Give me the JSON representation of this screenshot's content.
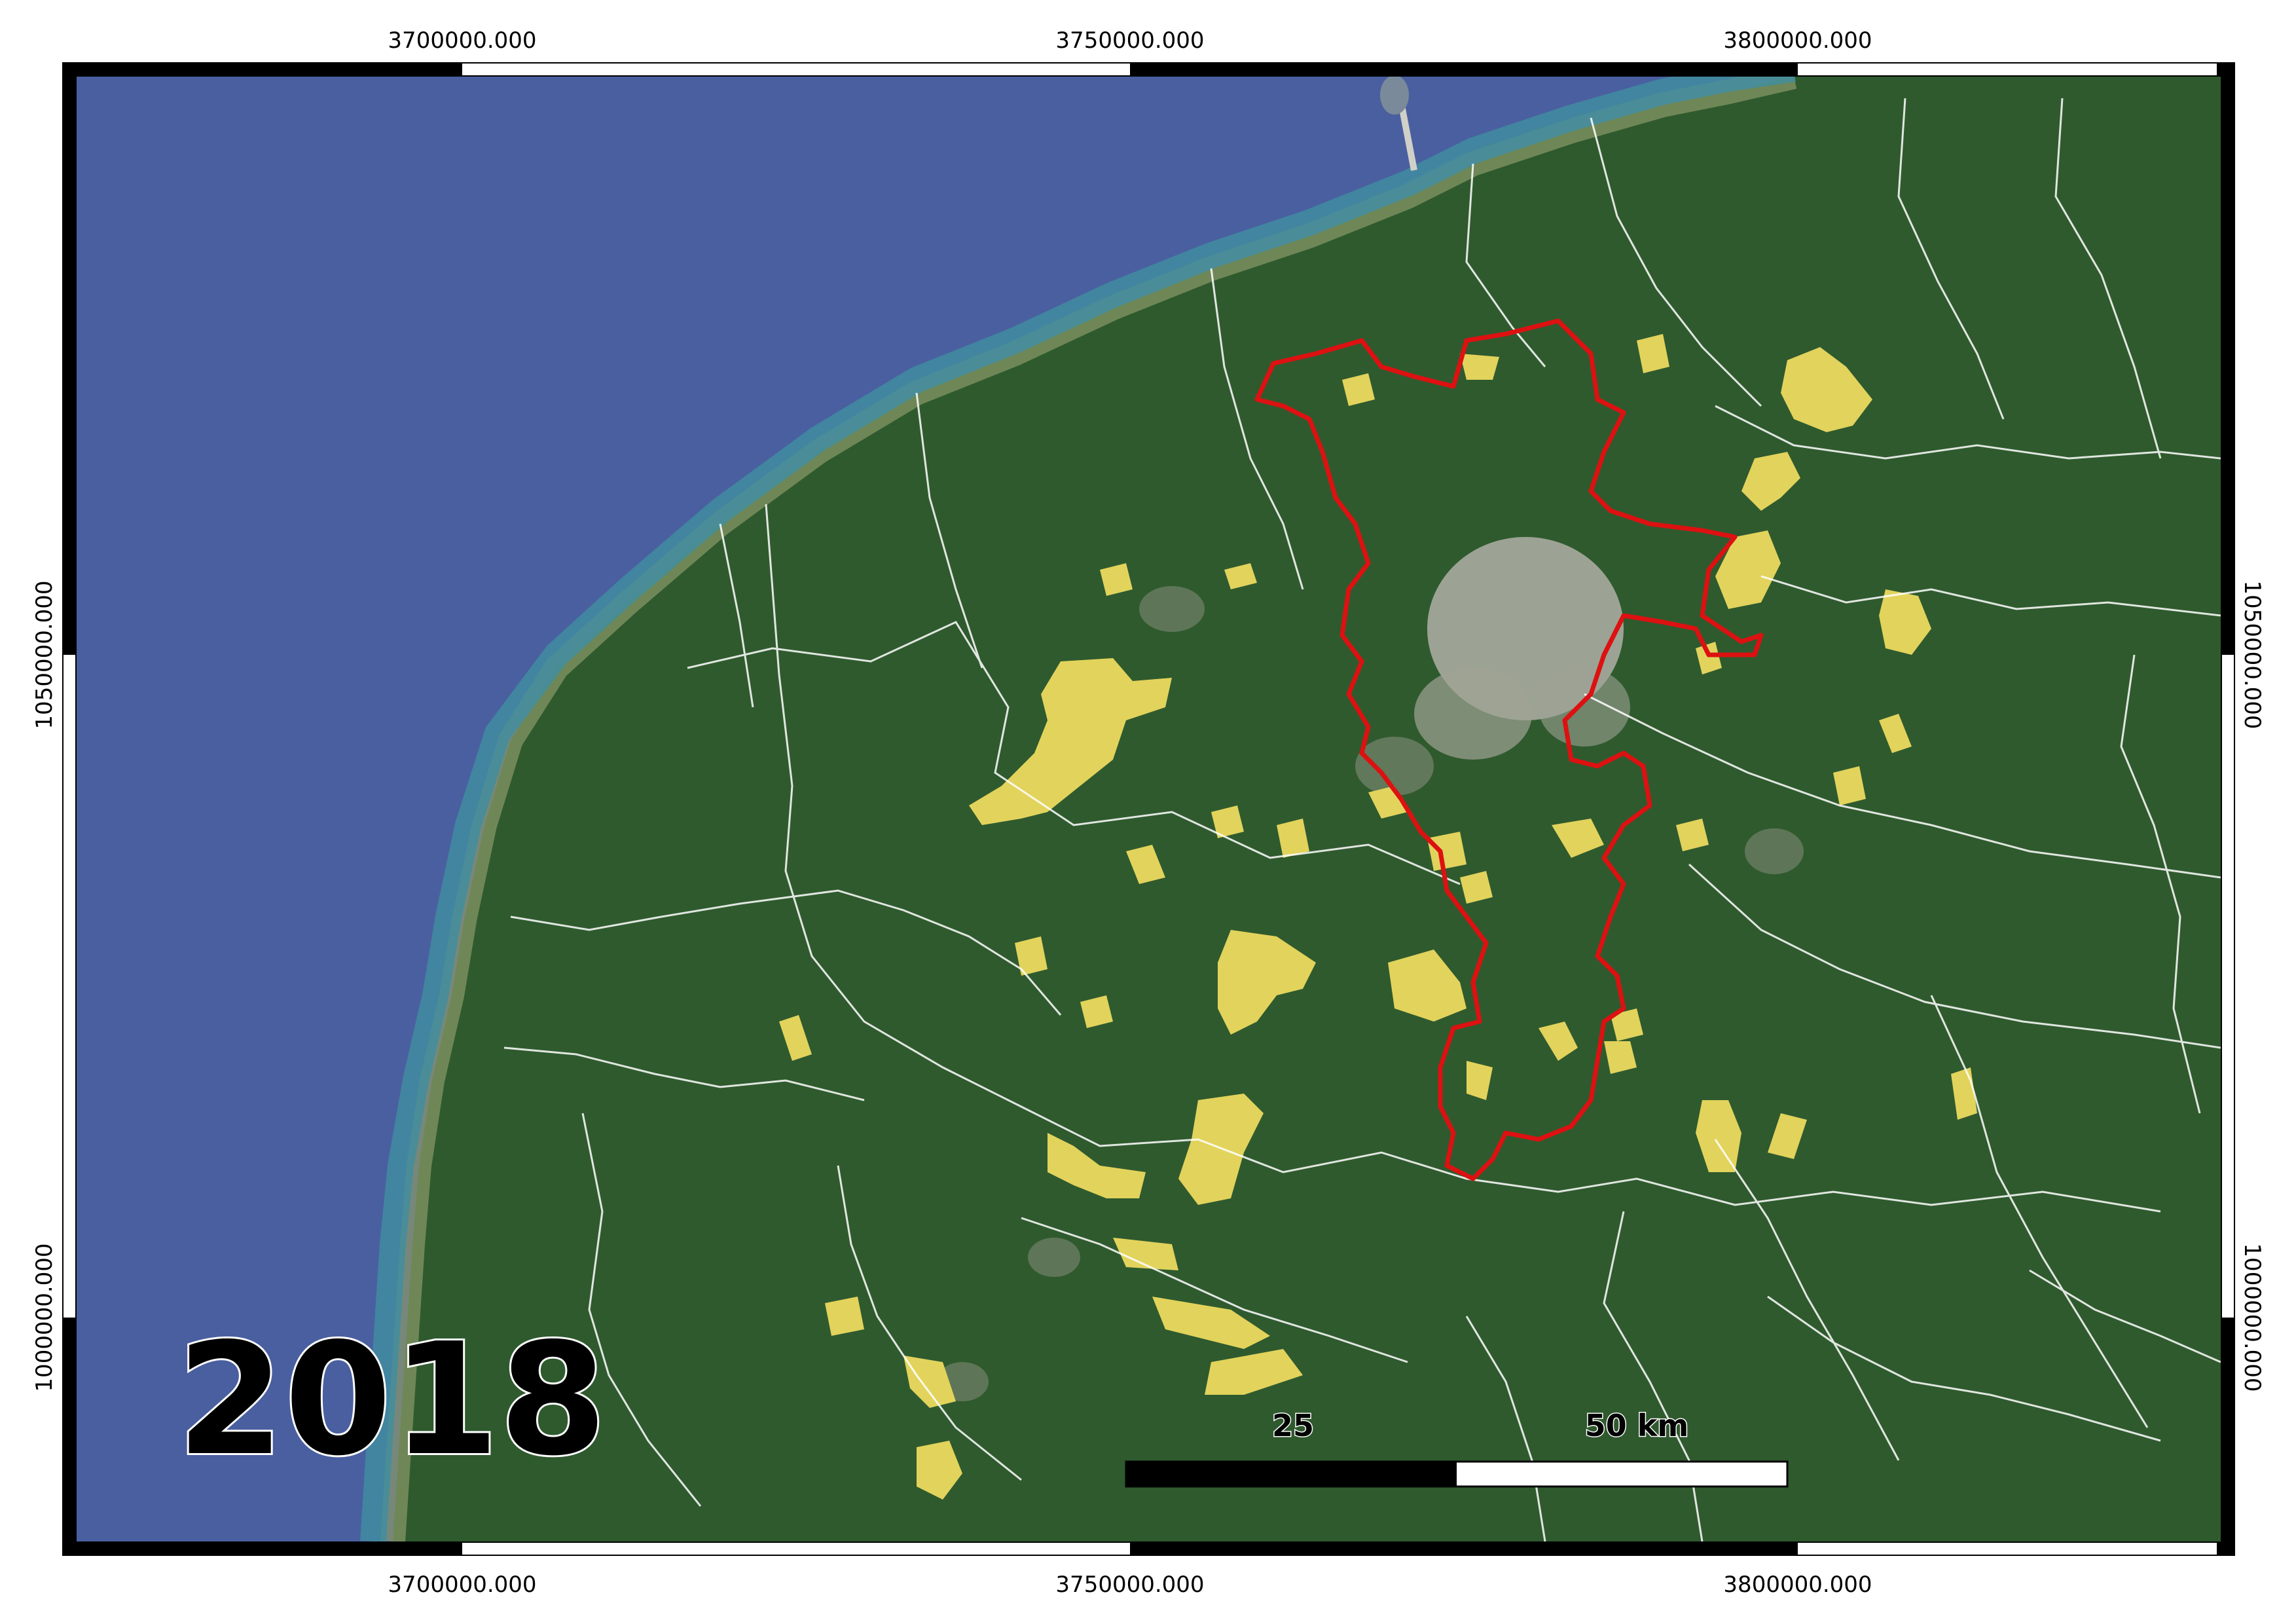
{
  "map": {
    "year": "2018",
    "colors": {
      "sea": "#4a5fa0",
      "land": "#2f5a2e",
      "urban": "#a9aba0",
      "highlight_area": "#e2d35c",
      "boundary_outline": "#ffffff",
      "study_area_outline": "#dd1111",
      "frame": "#000000"
    },
    "grid_labels": {
      "top": [
        "3700000.000",
        "3750000.000",
        "3800000.000"
      ],
      "bottom": [
        "3700000.000",
        "3750000.000",
        "3800000.000"
      ],
      "left": [
        "1050000.000",
        "1000000.000"
      ],
      "right": [
        "1050000.000",
        "1000000.000"
      ]
    },
    "scale_bar": {
      "mid_label": "25",
      "end_label": "50 km"
    }
  }
}
